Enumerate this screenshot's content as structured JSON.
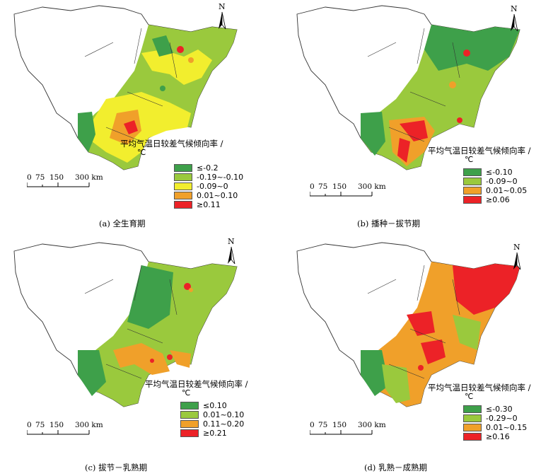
{
  "colors": {
    "dark_green": "#3ea04a",
    "light_green": "#9ac93d",
    "yellow": "#f2ee2e",
    "orange": "#f0a02a",
    "red": "#ec2227"
  },
  "north_label": "N",
  "scale_labels": [
    "0",
    "75",
    "150",
    "300 km"
  ],
  "legend_title": "平均气温日较差气候倾向率 /",
  "legend_unit": "℃",
  "panels": [
    {
      "caption": "(a)  全生育期",
      "legend": [
        "≤-0.2",
        "-0.19~-0.10",
        "-0.09~0",
        "0.01~0.10",
        "≥0.11"
      ],
      "classes": [
        "dark_green",
        "light_green",
        "yellow",
        "orange",
        "red"
      ]
    },
    {
      "caption": "(b)  播种－拔节期",
      "legend": [
        "≤-0.10",
        "-0.09~0",
        "0.01~0.05",
        "≥0.06"
      ],
      "classes": [
        "dark_green",
        "light_green",
        "orange",
        "red"
      ]
    },
    {
      "caption": "(c)  拔节－乳熟期",
      "legend": [
        "≤0.10",
        "0.01~0.10",
        "0.11~0.20",
        "≥0.21"
      ],
      "classes": [
        "dark_green",
        "light_green",
        "orange",
        "red"
      ]
    },
    {
      "caption": "(d)  乳熟－成熟期",
      "legend": [
        "≤-0.30",
        "-0.29~0",
        "0.01~0.15",
        "≥0.16"
      ],
      "classes": [
        "dark_green",
        "light_green",
        "orange",
        "red"
      ]
    }
  ]
}
